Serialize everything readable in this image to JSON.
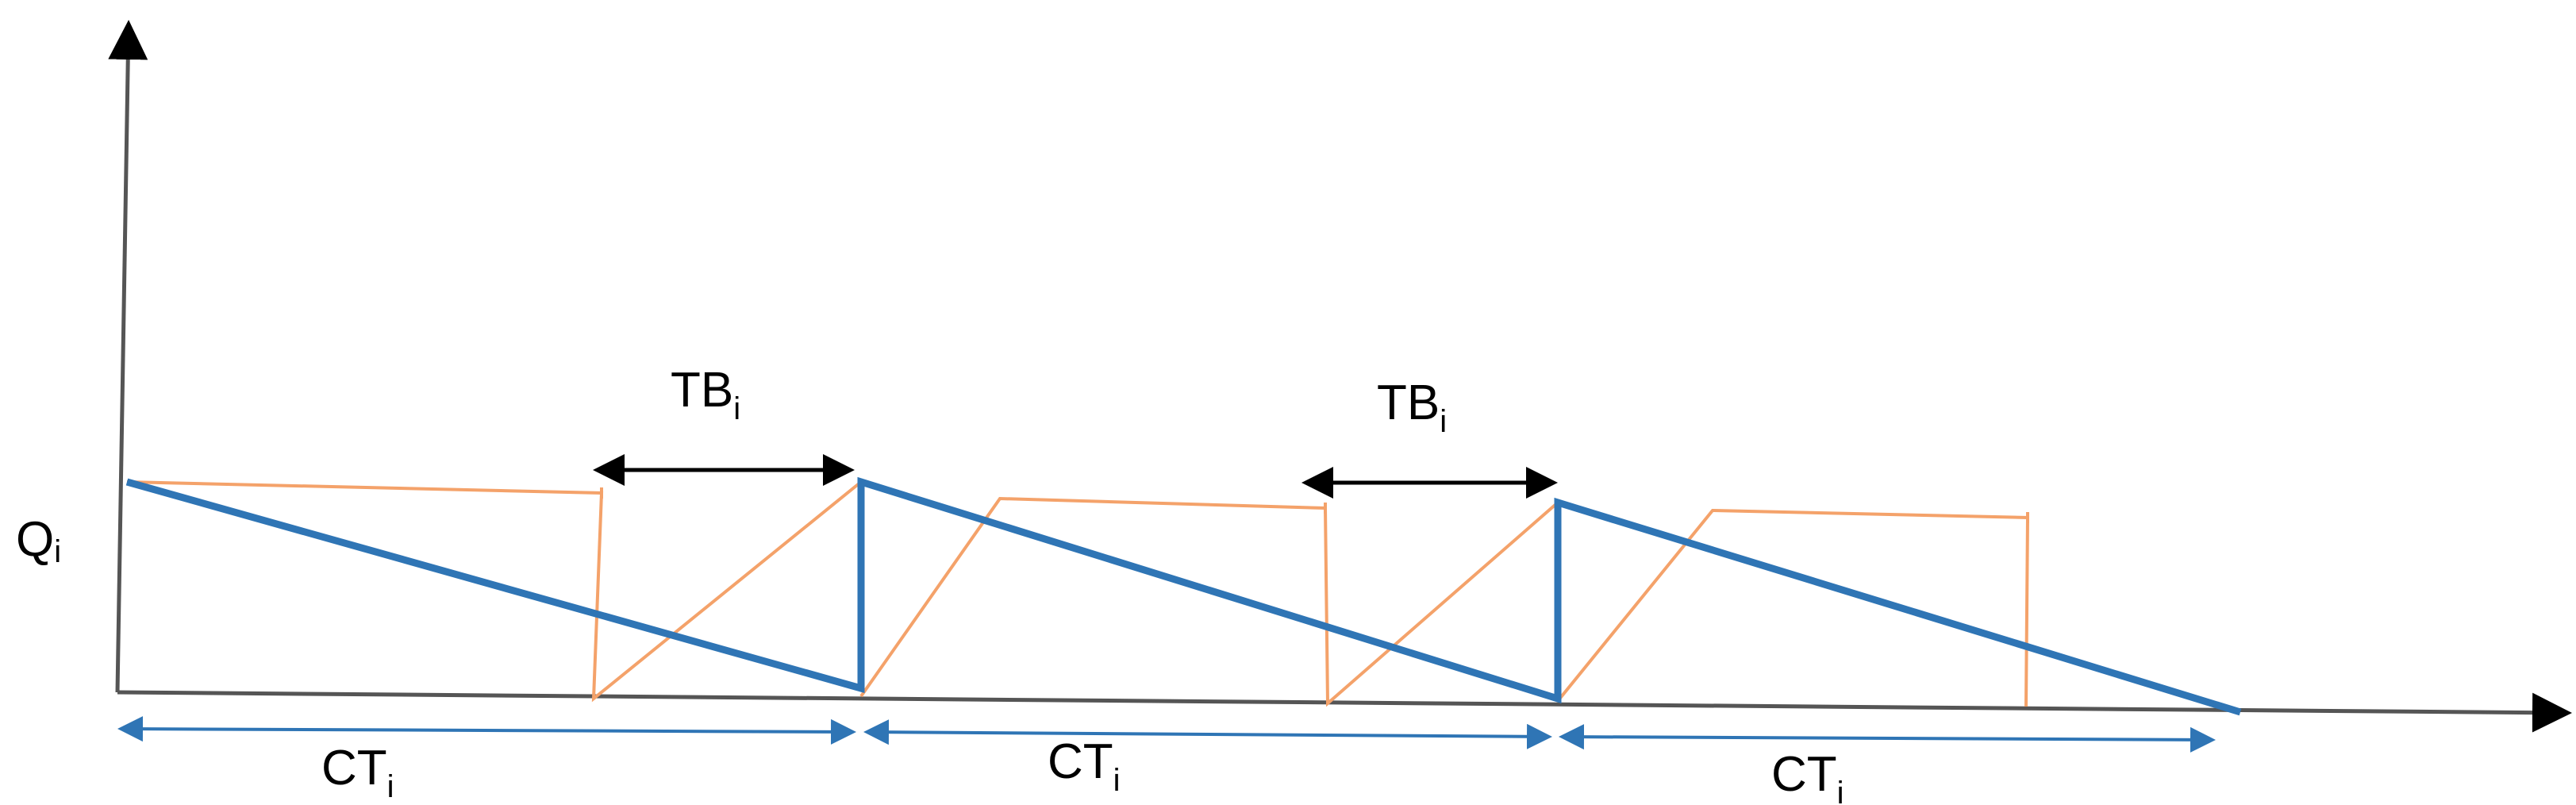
{
  "diagram": {
    "axis_label_y": {
      "main": "Q",
      "sub": "i"
    },
    "tb_labels": [
      {
        "main": "TB",
        "sub": "i"
      },
      {
        "main": "TB",
        "sub": "i"
      }
    ],
    "ct_labels": [
      {
        "main": "CT",
        "sub": "i"
      },
      {
        "main": "CT",
        "sub": "i"
      },
      {
        "main": "CT",
        "sub": "i"
      }
    ],
    "colors": {
      "axis": "#000000",
      "inventory_line": "#2f75b5",
      "secondary_line": "#f4a26a",
      "ct_arrow": "#2f75b5",
      "tb_arrow": "#000000",
      "text": "#000000"
    }
  }
}
